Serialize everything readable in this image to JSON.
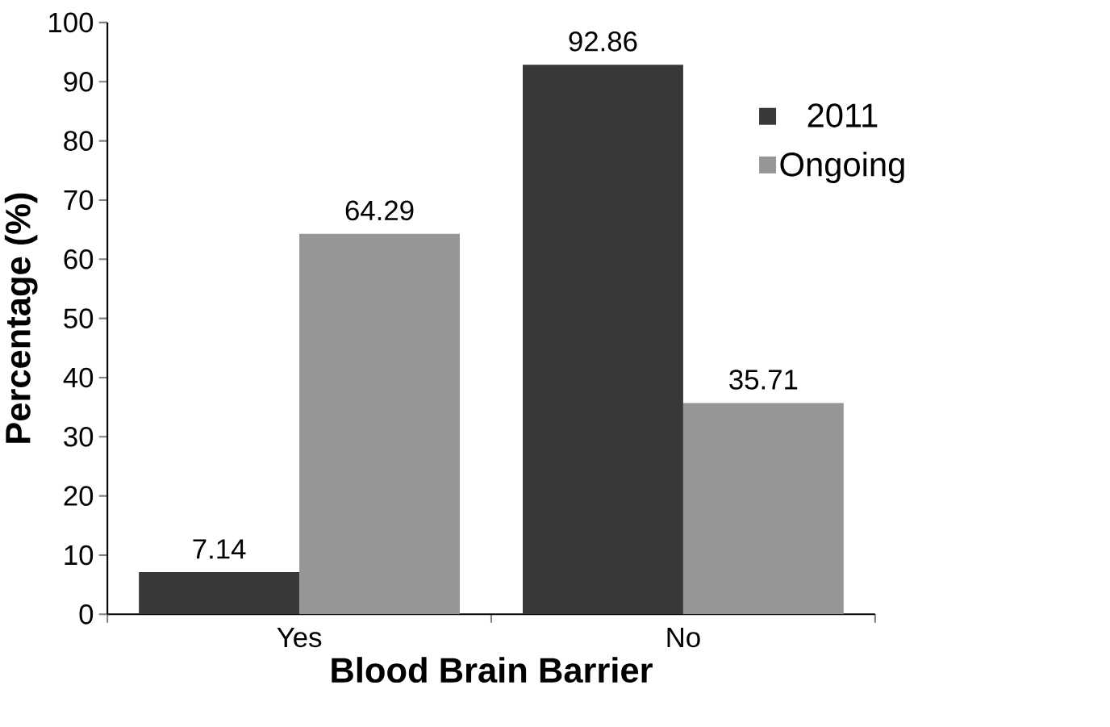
{
  "chart_data": {
    "type": "bar",
    "xlabel": "Blood Brain Barrier",
    "ylabel": "Percentage (%)",
    "categories": [
      "Yes",
      "No"
    ],
    "series": [
      {
        "name": "2011",
        "color": "#383838",
        "values": [
          7.14,
          92.86
        ]
      },
      {
        "name": "Ongoing",
        "color": "#969696",
        "values": [
          64.29,
          35.71
        ]
      }
    ],
    "ylim": [
      0,
      100
    ],
    "yticks": [
      0,
      10,
      20,
      30,
      40,
      50,
      60,
      70,
      80,
      90,
      100
    ],
    "data_labels": true,
    "legend": "right",
    "grid": false
  }
}
